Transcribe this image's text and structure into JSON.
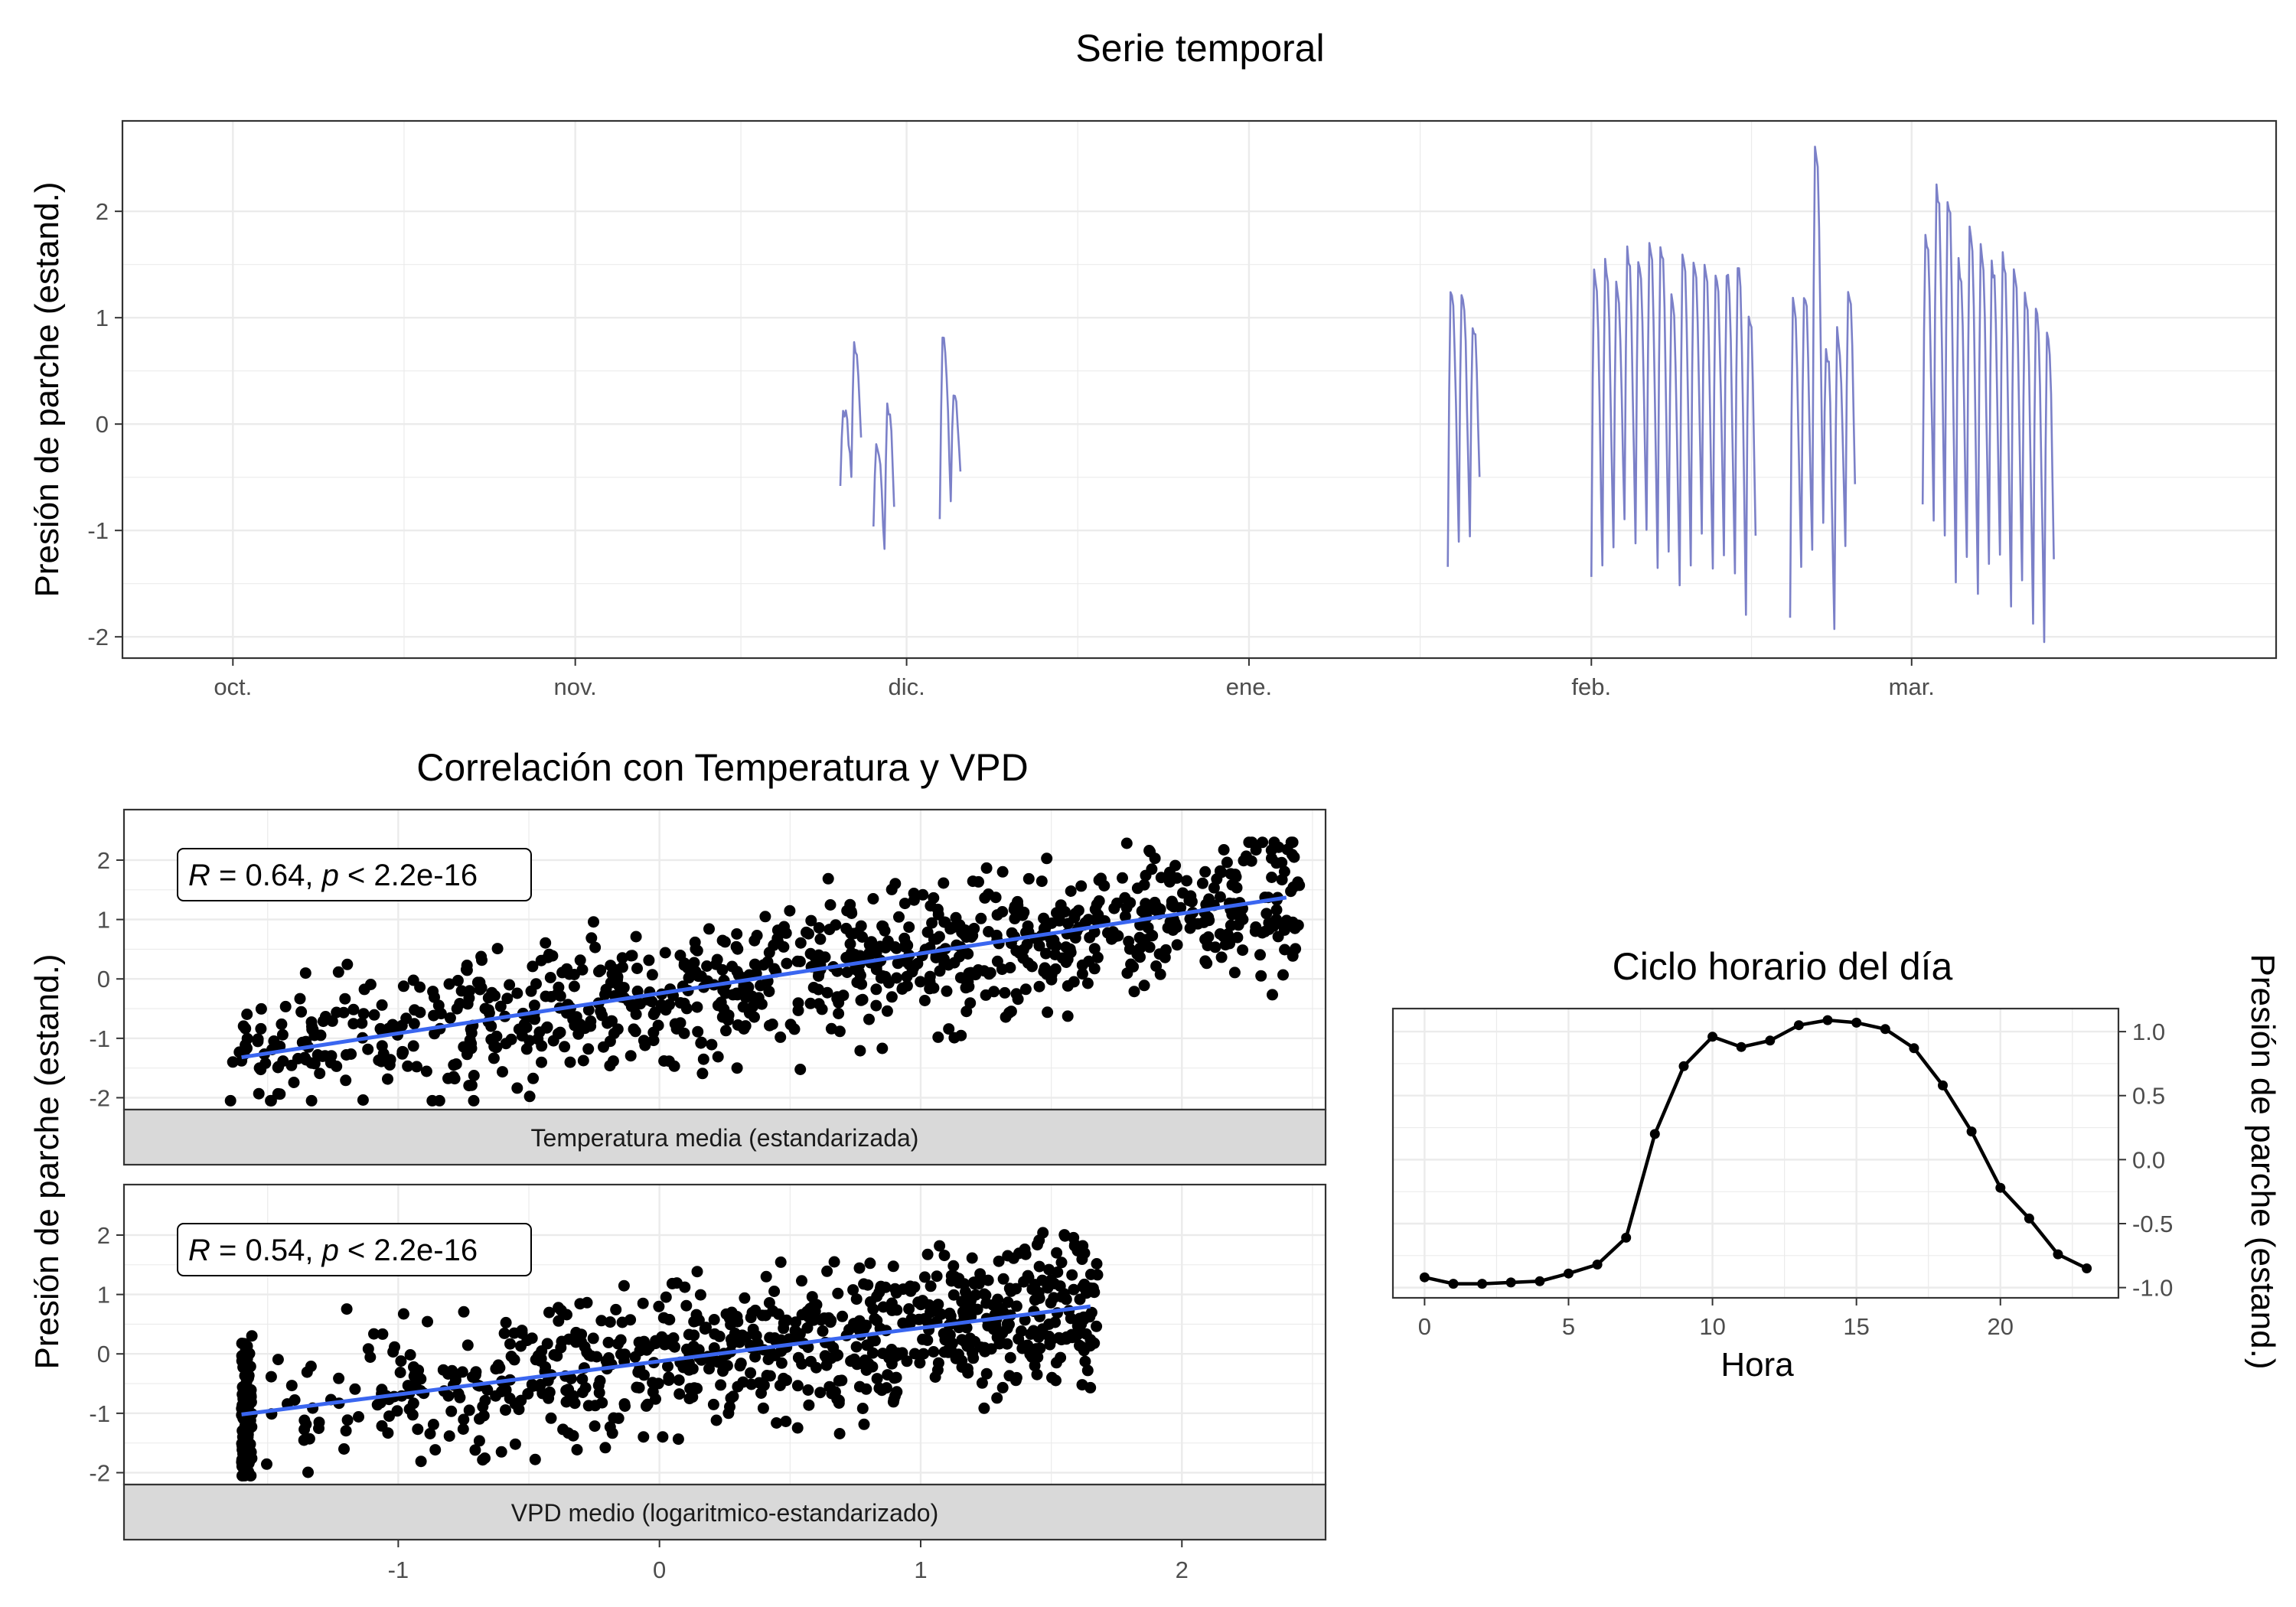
{
  "chart_data": [
    {
      "type": "line",
      "title": "Serie temporal",
      "xlabel": "",
      "ylabel": "Presión de parche (estand.)",
      "xlim": [
        "2023-09-21",
        "2024-04-03"
      ],
      "ylim": [
        -2.2,
        2.85
      ],
      "x_ticks": [
        {
          "date": "2023-10-01",
          "label": "oct."
        },
        {
          "date": "2023-11-01",
          "label": "nov."
        },
        {
          "date": "2023-12-01",
          "label": "dic."
        },
        {
          "date": "2024-01-01",
          "label": "ene."
        },
        {
          "date": "2024-02-01",
          "label": "feb."
        },
        {
          "date": "2024-03-01",
          "label": "mar."
        }
      ],
      "y_ticks": [
        -2,
        -1,
        0,
        1,
        2
      ],
      "grid": true,
      "line_color": "#7b80c8",
      "segments": [
        {
          "start": "2023-11-25",
          "days": 2,
          "lows": [
            -0.55,
            -0.45
          ],
          "highs": [
            0.15,
            0.75
          ]
        },
        {
          "start": "2023-11-28",
          "days": 2,
          "lows": [
            -0.95,
            -1.15
          ],
          "highs": [
            -0.2,
            0.2
          ]
        },
        {
          "start": "2023-12-04",
          "days": 2,
          "lows": [
            -0.95,
            -0.7
          ],
          "highs": [
            0.85,
            0.25
          ]
        },
        {
          "start": "2024-01-19",
          "days": 3,
          "lows": [
            -1.35,
            -1.05,
            -1.0
          ],
          "highs": [
            1.3,
            1.25,
            0.95
          ]
        },
        {
          "start": "2024-02-01",
          "days": 15,
          "lows": [
            -1.4,
            -1.3,
            -1.2,
            -0.95,
            -1.1,
            -1.0,
            -1.3,
            -1.25,
            -1.5,
            -1.3,
            -1.0,
            -1.4,
            -1.2,
            -1.45,
            -1.75
          ],
          "highs": [
            1.5,
            1.55,
            1.35,
            1.65,
            1.55,
            1.7,
            1.75,
            1.2,
            1.65,
            1.55,
            1.5,
            1.4,
            1.45,
            1.55,
            1.1
          ]
        },
        {
          "start": "2024-02-19",
          "days": 6,
          "lows": [
            -1.8,
            -1.4,
            -1.2,
            -0.95,
            -1.95,
            -1.2
          ],
          "highs": [
            1.2,
            1.25,
            2.65,
            0.7,
            0.9,
            1.3
          ]
        },
        {
          "start": "2024-03-02",
          "days": 12,
          "lows": [
            -0.75,
            -0.85,
            -1.1,
            -1.5,
            -1.3,
            -1.6,
            -1.35,
            -1.25,
            -1.7,
            -1.5,
            -1.9,
            -2.0
          ],
          "highs": [
            1.8,
            2.25,
            2.15,
            1.55,
            1.85,
            1.7,
            1.55,
            1.6,
            1.45,
            1.3,
            1.1,
            0.9
          ]
        }
      ]
    },
    {
      "type": "scatter",
      "title": "Correlación con Temperatura y VPD",
      "xlabel": "",
      "ylabel": "Presión de parche (estand.)",
      "xlim": [
        -2.05,
        2.55
      ],
      "ylim": [
        -2.2,
        2.85
      ],
      "x_ticks": [
        -1,
        0,
        1,
        2
      ],
      "y_ticks": [
        -2,
        -1,
        0,
        1,
        2
      ],
      "grid": true,
      "point_color": "#000000",
      "fit_color": "#3a66f0",
      "facets": [
        {
          "strip": "Temperatura media (estandarizada)",
          "annotation": {
            "R": "0.64",
            "p": "2.2e-16"
          },
          "fit": {
            "x": [
              -1.6,
              2.4
            ],
            "y": [
              -1.32,
              1.37
            ]
          },
          "x_range": [
            -1.65,
            2.45
          ],
          "n_points": 900
        },
        {
          "strip": "VPD medio (logaritmico-estandarizado)",
          "annotation": {
            "R": "0.54",
            "p": "2.2e-16"
          },
          "fit": {
            "x": [
              -1.6,
              1.65
            ],
            "y": [
              -1.02,
              0.8
            ]
          },
          "x_range": [
            -1.6,
            1.68
          ],
          "n_points": 900
        }
      ]
    },
    {
      "type": "line",
      "title": "Ciclo horario del día",
      "xlabel": "Hora",
      "ylabel": "Presión de parche (estand.)",
      "xlim": [
        -1.1,
        24.1
      ],
      "ylim": [
        -1.08,
        1.18
      ],
      "x_ticks": [
        0,
        5,
        10,
        15,
        20
      ],
      "y_ticks": [
        -1.0,
        -0.5,
        0.0,
        0.5,
        1.0
      ],
      "y_tick_labels": [
        "-1.0",
        "-0.5",
        "0.0",
        "0.5",
        "1.0"
      ],
      "y_axis_position": "right",
      "grid": true,
      "x": [
        0,
        1,
        2,
        3,
        4,
        5,
        6,
        7,
        8,
        9,
        10,
        11,
        12,
        13,
        14,
        15,
        16,
        17,
        18,
        19,
        20,
        21,
        22,
        23
      ],
      "y": [
        -0.92,
        -0.97,
        -0.97,
        -0.96,
        -0.95,
        -0.89,
        -0.82,
        -0.61,
        0.2,
        0.73,
        0.96,
        0.88,
        0.93,
        1.05,
        1.09,
        1.07,
        1.02,
        0.87,
        0.58,
        0.22,
        -0.22,
        -0.46,
        -0.74,
        -0.85
      ]
    }
  ],
  "labels": {
    "ts_title": "Serie temporal",
    "ts_ylabel": "Presión de parche (estand.)",
    "sc_title": "Correlación con Temperatura y VPD",
    "sc_ylabel": "Presión de parche (estand.)",
    "strip1": "Temperatura media (estandarizada)",
    "strip2": "VPD medio (logaritmico-estandarizado)",
    "hr_title": "Ciclo horario del día",
    "hr_xlabel": "Hora",
    "hr_ylabel": "Presión de parche (estand.)",
    "ann1_r": "R",
    "ann1_eq": " = 0.64, ",
    "ann1_p": "p",
    "ann1_lt": " < 2.2e-16",
    "ann2_r": "R",
    "ann2_eq": " = 0.54, ",
    "ann2_p": "p",
    "ann2_lt": " < 2.2e-16"
  }
}
